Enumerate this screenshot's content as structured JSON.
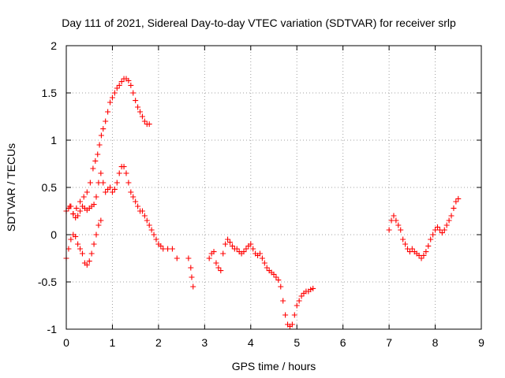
{
  "chart_data": {
    "type": "scatter",
    "title": "Day 111 of 2021, Sidereal Day-to-day VTEC variation (SDTVAR) for receiver srlp",
    "xlabel": "GPS time / hours",
    "ylabel": "SDTVAR / TECUs",
    "xlim": [
      0,
      9
    ],
    "ylim": [
      -1,
      2
    ],
    "xticks": [
      "0",
      "1",
      "2",
      "3",
      "4",
      "5",
      "6",
      "7",
      "8",
      "9"
    ],
    "yticks": [
      "-1",
      "-0.5",
      "0",
      "0.5",
      "1",
      "1.5",
      "2"
    ],
    "grid": true,
    "marker": "plus",
    "color": "#ff0000",
    "series": [
      {
        "segments": [
          {
            "x": [
              0.0,
              0.08,
              0.15,
              0.22,
              0.3,
              0.38,
              0.45,
              0.52,
              0.58,
              0.63,
              0.68,
              0.72,
              0.76,
              0.8,
              0.85,
              0.9,
              0.95,
              1.0,
              1.05,
              1.1,
              1.15,
              1.2,
              1.25,
              1.3,
              1.35,
              1.4,
              1.45,
              1.5,
              1.55,
              1.6,
              1.65,
              1.7,
              1.75,
              1.8
            ],
            "y": [
              0.25,
              0.3,
              0.22,
              0.28,
              0.35,
              0.4,
              0.45,
              0.55,
              0.7,
              0.78,
              0.85,
              0.95,
              1.05,
              1.12,
              1.2,
              1.3,
              1.4,
              1.45,
              1.5,
              1.55,
              1.58,
              1.62,
              1.65,
              1.65,
              1.63,
              1.58,
              1.5,
              1.42,
              1.35,
              1.3,
              1.25,
              1.2,
              1.17,
              1.17
            ]
          },
          {
            "x": [
              0.0,
              0.05,
              0.1,
              0.15,
              0.2,
              0.25,
              0.3,
              0.35,
              0.4,
              0.45,
              0.5,
              0.55,
              0.6,
              0.65,
              0.7,
              0.75,
              0.8,
              0.85,
              0.9,
              0.95,
              1.0,
              1.05,
              1.1,
              1.15,
              1.2,
              1.25,
              1.3,
              1.35,
              1.4,
              1.45,
              1.5,
              1.55,
              1.6,
              1.65,
              1.7,
              1.75,
              1.8,
              1.85,
              1.9,
              1.95,
              2.0,
              2.05,
              2.1,
              2.2,
              2.3,
              2.4
            ],
            "y": [
              0.25,
              0.28,
              0.3,
              0.22,
              0.18,
              0.2,
              0.25,
              0.3,
              0.28,
              0.26,
              0.28,
              0.3,
              0.32,
              0.4,
              0.55,
              0.65,
              0.55,
              0.45,
              0.48,
              0.5,
              0.45,
              0.48,
              0.55,
              0.65,
              0.72,
              0.72,
              0.65,
              0.55,
              0.45,
              0.4,
              0.35,
              0.3,
              0.25,
              0.25,
              0.2,
              0.15,
              0.1,
              0.05,
              0.0,
              -0.05,
              -0.1,
              -0.12,
              -0.15,
              -0.15,
              -0.15,
              -0.25
            ]
          },
          {
            "x": [
              0.0,
              0.05,
              0.1,
              0.15,
              0.2,
              0.25,
              0.3,
              0.35,
              0.4,
              0.45,
              0.5,
              0.55,
              0.6,
              0.65,
              0.7,
              0.75
            ],
            "y": [
              -0.25,
              -0.15,
              -0.05,
              0.0,
              -0.02,
              -0.1,
              -0.15,
              -0.2,
              -0.3,
              -0.32,
              -0.28,
              -0.2,
              -0.1,
              0.0,
              0.1,
              0.15
            ]
          },
          {
            "x": [
              2.65,
              2.7,
              2.72,
              2.75
            ],
            "y": [
              -0.25,
              -0.35,
              -0.45,
              -0.55
            ]
          },
          {
            "x": [
              3.1,
              3.15,
              3.2,
              3.25,
              3.3,
              3.35,
              3.4,
              3.45,
              3.5,
              3.55,
              3.6,
              3.65,
              3.7,
              3.75,
              3.8,
              3.85,
              3.9,
              3.95,
              4.0,
              4.05,
              4.1,
              4.15,
              4.2,
              4.25,
              4.3,
              4.35,
              4.4,
              4.45,
              4.5,
              4.55,
              4.6,
              4.65,
              4.7,
              4.75,
              4.8,
              4.85,
              4.9,
              4.95,
              5.0,
              5.05,
              5.1,
              5.15,
              5.2,
              5.25,
              5.3,
              5.35
            ],
            "y": [
              -0.25,
              -0.2,
              -0.18,
              -0.3,
              -0.35,
              -0.38,
              -0.2,
              -0.1,
              -0.05,
              -0.08,
              -0.12,
              -0.15,
              -0.15,
              -0.18,
              -0.2,
              -0.18,
              -0.15,
              -0.12,
              -0.1,
              -0.15,
              -0.2,
              -0.22,
              -0.2,
              -0.25,
              -0.3,
              -0.35,
              -0.38,
              -0.4,
              -0.42,
              -0.45,
              -0.48,
              -0.55,
              -0.7,
              -0.85,
              -0.95,
              -0.97,
              -0.95,
              -0.85,
              -0.75,
              -0.7,
              -0.65,
              -0.62,
              -0.6,
              -0.6,
              -0.58,
              -0.57
            ]
          },
          {
            "x": [
              7.0,
              7.05,
              7.1,
              7.15,
              7.2,
              7.25,
              7.3,
              7.35,
              7.4,
              7.45,
              7.5,
              7.55,
              7.6,
              7.65,
              7.7,
              7.75,
              7.8,
              7.85,
              7.9,
              7.95,
              8.0,
              8.05,
              8.1,
              8.15,
              8.2,
              8.25,
              8.3,
              8.35,
              8.4,
              8.45,
              8.5
            ],
            "y": [
              0.05,
              0.15,
              0.2,
              0.15,
              0.1,
              0.05,
              -0.05,
              -0.1,
              -0.15,
              -0.18,
              -0.15,
              -0.18,
              -0.2,
              -0.22,
              -0.25,
              -0.22,
              -0.18,
              -0.12,
              -0.05,
              0.0,
              0.05,
              0.08,
              0.05,
              0.02,
              0.05,
              0.1,
              0.15,
              0.2,
              0.28,
              0.35,
              0.38
            ]
          }
        ]
      }
    ]
  }
}
